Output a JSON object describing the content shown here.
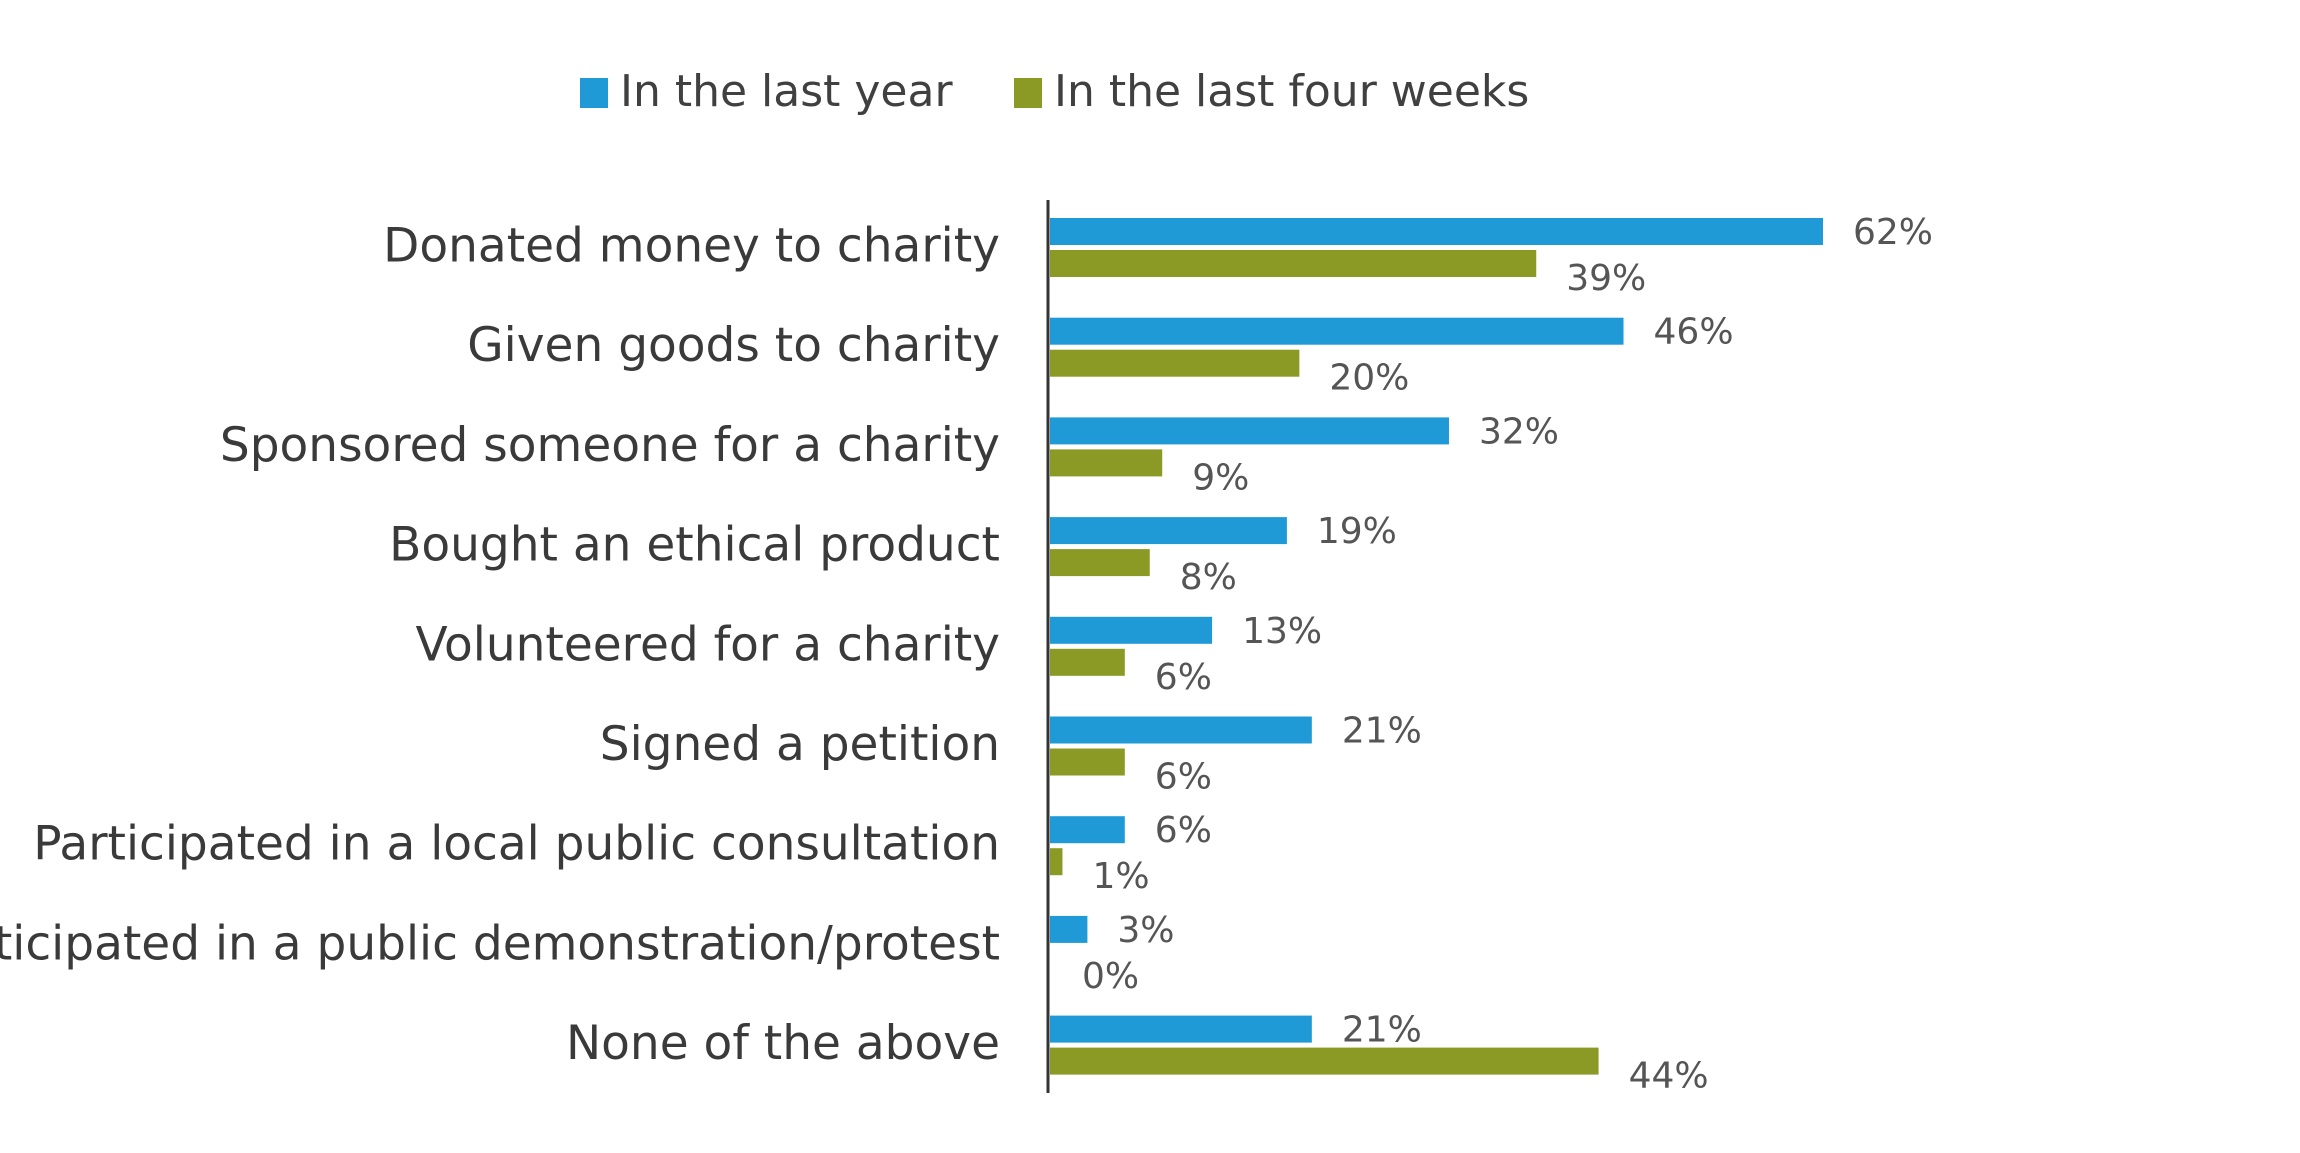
{
  "chart_data": {
    "type": "bar",
    "orientation": "horizontal",
    "title": "",
    "xlabel": "",
    "ylabel": "",
    "xlim": [
      0,
      62
    ],
    "grid": false,
    "legend_position": "top",
    "categories": [
      "Donated money to charity",
      "Given goods to charity",
      "Sponsored someone for a charity",
      "Bought an ethical product",
      "Volunteered for a charity",
      "Signed a petition",
      "Participated in a local public consultation",
      "Participated in a public demonstration/protest",
      "None of the above"
    ],
    "series": [
      {
        "name": "In the last year",
        "color": "#1f9ad6",
        "values": [
          62,
          46,
          32,
          19,
          13,
          21,
          6,
          3,
          21
        ],
        "labels": [
          "62%",
          "46%",
          "32%",
          "19%",
          "13%",
          "21%",
          "6%",
          "3%",
          "21%"
        ]
      },
      {
        "name": "In the last four weeks",
        "color": "#8a9a24",
        "values": [
          39,
          20,
          9,
          8,
          6,
          6,
          1,
          0,
          44
        ],
        "labels": [
          "39%",
          "20%",
          "9%",
          "8%",
          "6%",
          "6%",
          "1%",
          "0%",
          "44%"
        ]
      }
    ],
    "axis_color": "#333333"
  }
}
